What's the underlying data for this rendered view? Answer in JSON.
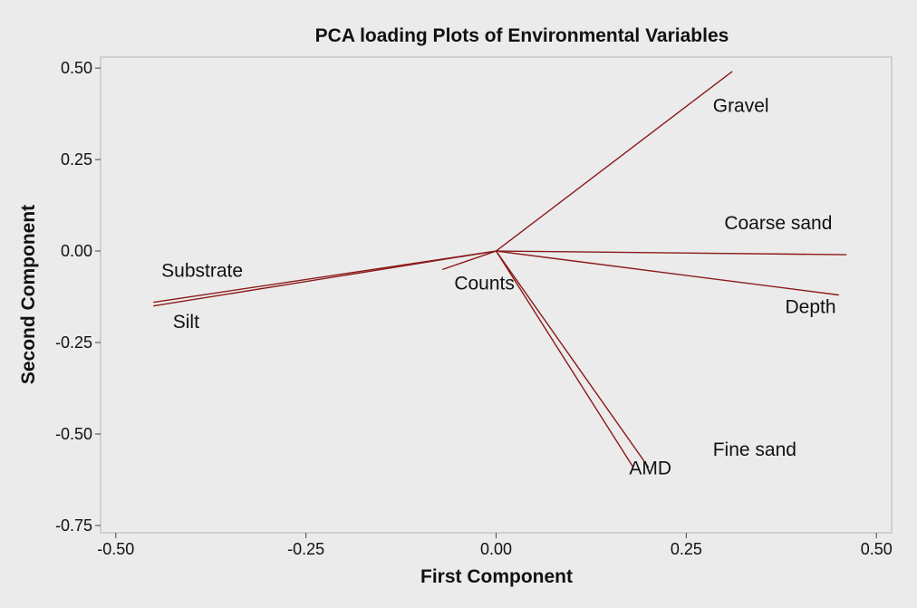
{
  "chart_data": {
    "type": "scatter",
    "subtype": "pca-loading-plot",
    "title": "PCA loading Plots of Environmental Variables",
    "xlabel": "First Component",
    "ylabel": "Second Component",
    "xlim": [
      -0.52,
      0.52
    ],
    "ylim": [
      -0.77,
      0.53
    ],
    "xticks": [
      -0.5,
      -0.25,
      0.0,
      0.25,
      0.5
    ],
    "yticks": [
      0.5,
      0.25,
      0.0,
      -0.25,
      -0.5,
      -0.75
    ],
    "xtick_labels": [
      "-0.50",
      "-0.25",
      "0.00",
      "0.25",
      "0.50"
    ],
    "ytick_labels": [
      "0.50",
      "0.25",
      "0.00",
      "-0.25",
      "-0.50",
      "-0.75"
    ],
    "grid": false,
    "legend": "none",
    "line_color": "#8b1a1a",
    "loadings": [
      {
        "name": "Gravel",
        "x": 0.31,
        "y": 0.49
      },
      {
        "name": "Coarse sand",
        "x": 0.46,
        "y": -0.01
      },
      {
        "name": "Depth",
        "x": 0.45,
        "y": -0.12
      },
      {
        "name": "Fine sand",
        "x": 0.2,
        "y": -0.59
      },
      {
        "name": "AMD",
        "x": 0.18,
        "y": -0.59
      },
      {
        "name": "Counts",
        "x": -0.07,
        "y": -0.05
      },
      {
        "name": "Substrate",
        "x": -0.45,
        "y": -0.14
      },
      {
        "name": "Silt",
        "x": -0.45,
        "y": -0.15
      }
    ],
    "labels": [
      {
        "name": "Gravel",
        "text": "Gravel",
        "x": 0.285,
        "y": 0.38
      },
      {
        "name": "Coarse sand",
        "text": "Coarse sand",
        "x": 0.3,
        "y": 0.06
      },
      {
        "name": "Depth",
        "text": "Depth",
        "x": 0.38,
        "y": -0.17
      },
      {
        "name": "Fine sand",
        "text": "Fine sand",
        "x": 0.285,
        "y": -0.56
      },
      {
        "name": "AMD",
        "text": "AMD",
        "x": 0.175,
        "y": -0.61
      },
      {
        "name": "Counts",
        "text": "Counts",
        "x": -0.055,
        "y": -0.105
      },
      {
        "name": "Substrate",
        "text": "Substrate",
        "x": -0.44,
        "y": -0.07
      },
      {
        "name": "Silt",
        "text": "Silt",
        "x": -0.425,
        "y": -0.21
      }
    ]
  }
}
